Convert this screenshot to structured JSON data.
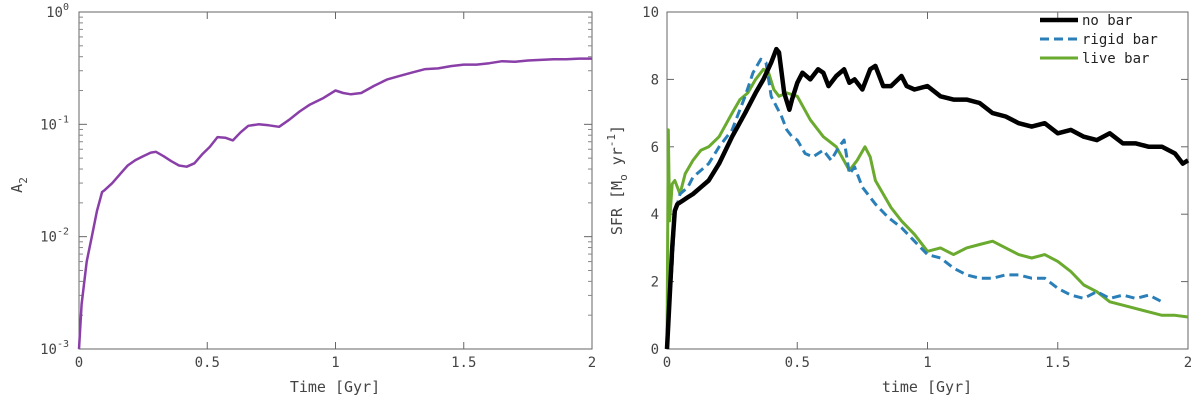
{
  "chart_data": [
    {
      "type": "line",
      "xlabel": "Time [Gyr]",
      "ylabel_base": "A",
      "ylabel_sub": "2",
      "yscale": "log",
      "xlim": [
        0,
        2
      ],
      "ylim": [
        0.001,
        1
      ],
      "xticks": [
        0,
        0.5,
        1,
        1.5,
        2
      ],
      "xtick_labels": [
        "0",
        "0.5",
        "1",
        "1.5",
        "2"
      ],
      "yticks": [
        0.001,
        0.01,
        0.1,
        1
      ],
      "ytick_base": "10",
      "ytick_exponents": [
        "-3",
        "-2",
        "-1",
        "0"
      ],
      "grid": false,
      "series": [
        {
          "color": "#8a3fa8",
          "x": [
            0,
            0.01,
            0.03,
            0.05,
            0.07,
            0.09,
            0.1,
            0.13,
            0.16,
            0.19,
            0.22,
            0.25,
            0.28,
            0.3,
            0.33,
            0.36,
            0.39,
            0.42,
            0.45,
            0.48,
            0.51,
            0.54,
            0.57,
            0.6,
            0.63,
            0.66,
            0.7,
            0.74,
            0.78,
            0.82,
            0.86,
            0.9,
            0.95,
            1.0,
            1.03,
            1.06,
            1.1,
            1.15,
            1.2,
            1.25,
            1.3,
            1.35,
            1.4,
            1.45,
            1.5,
            1.55,
            1.6,
            1.65,
            1.7,
            1.75,
            1.8,
            1.85,
            1.9,
            1.95,
            2.0
          ],
          "y": [
            0.001,
            0.0025,
            0.006,
            0.01,
            0.017,
            0.025,
            0.026,
            0.03,
            0.036,
            0.043,
            0.048,
            0.052,
            0.056,
            0.057,
            0.052,
            0.047,
            0.043,
            0.042,
            0.045,
            0.054,
            0.063,
            0.077,
            0.076,
            0.072,
            0.085,
            0.097,
            0.1,
            0.098,
            0.095,
            0.11,
            0.13,
            0.15,
            0.17,
            0.2,
            0.19,
            0.185,
            0.19,
            0.22,
            0.25,
            0.27,
            0.29,
            0.31,
            0.315,
            0.33,
            0.34,
            0.34,
            0.35,
            0.365,
            0.36,
            0.37,
            0.375,
            0.38,
            0.38,
            0.385,
            0.385
          ]
        }
      ]
    },
    {
      "type": "line",
      "xlabel": "time [Gyr]",
      "ylabel_prefix": "SFR [M",
      "ylabel_msub": "o",
      "ylabel_mid": " yr",
      "ylabel_sup": "-1",
      "ylabel_suffix": "]",
      "xlim": [
        0,
        2
      ],
      "ylim": [
        0,
        10
      ],
      "xticks": [
        0,
        0.5,
        1,
        1.5,
        2
      ],
      "xtick_labels": [
        "0",
        "0.5",
        "1",
        "1.5",
        "2"
      ],
      "yticks": [
        0,
        2,
        4,
        6,
        8,
        10
      ],
      "ytick_labels": [
        "0",
        "2",
        "4",
        "6",
        "8",
        "10"
      ],
      "grid": false,
      "legend_position": "top-right",
      "series": [
        {
          "name": "no bar",
          "color": "#000000",
          "style": "solid",
          "x": [
            0,
            0.01,
            0.02,
            0.03,
            0.04,
            0.06,
            0.08,
            0.1,
            0.13,
            0.16,
            0.2,
            0.25,
            0.3,
            0.34,
            0.37,
            0.4,
            0.42,
            0.43,
            0.45,
            0.47,
            0.48,
            0.5,
            0.52,
            0.55,
            0.58,
            0.6,
            0.62,
            0.65,
            0.68,
            0.7,
            0.72,
            0.75,
            0.78,
            0.8,
            0.83,
            0.86,
            0.9,
            0.92,
            0.95,
            1.0,
            1.05,
            1.1,
            1.15,
            1.2,
            1.25,
            1.3,
            1.35,
            1.4,
            1.45,
            1.5,
            1.55,
            1.6,
            1.65,
            1.7,
            1.75,
            1.8,
            1.85,
            1.9,
            1.95,
            1.98,
            2.0
          ],
          "y": [
            0,
            1.5,
            3.0,
            4.1,
            4.3,
            4.4,
            4.5,
            4.6,
            4.8,
            5.0,
            5.5,
            6.3,
            7.0,
            7.6,
            8.0,
            8.5,
            8.9,
            8.8,
            7.6,
            7.1,
            7.4,
            7.9,
            8.2,
            8.0,
            8.3,
            8.2,
            7.8,
            8.1,
            8.3,
            7.9,
            8.0,
            7.7,
            8.3,
            8.4,
            7.8,
            7.8,
            8.1,
            7.8,
            7.7,
            7.8,
            7.5,
            7.4,
            7.4,
            7.3,
            7.0,
            6.9,
            6.7,
            6.6,
            6.7,
            6.4,
            6.5,
            6.3,
            6.2,
            6.4,
            6.1,
            6.1,
            6.0,
            6.0,
            5.8,
            5.5,
            5.6
          ]
        },
        {
          "name": "rigid bar",
          "color": "#2a7fb8",
          "style": "dashed",
          "x": [
            0,
            0.01,
            0.02,
            0.03,
            0.05,
            0.08,
            0.1,
            0.13,
            0.16,
            0.2,
            0.25,
            0.3,
            0.33,
            0.36,
            0.38,
            0.4,
            0.42,
            0.44,
            0.46,
            0.48,
            0.5,
            0.53,
            0.56,
            0.6,
            0.63,
            0.66,
            0.68,
            0.7,
            0.72,
            0.75,
            0.8,
            0.85,
            0.9,
            0.95,
            1.0,
            1.05,
            1.1,
            1.15,
            1.2,
            1.25,
            1.3,
            1.35,
            1.4,
            1.45,
            1.5,
            1.55,
            1.6,
            1.65,
            1.7,
            1.75,
            1.8,
            1.85,
            1.9
          ],
          "y": [
            0,
            1.5,
            2.5,
            4.0,
            4.6,
            4.8,
            5.1,
            5.3,
            5.5,
            6.0,
            6.5,
            7.5,
            8.2,
            8.6,
            8.5,
            7.5,
            7.2,
            6.9,
            6.5,
            6.3,
            6.2,
            5.8,
            5.7,
            5.9,
            5.6,
            6.0,
            6.2,
            5.2,
            5.4,
            4.8,
            4.3,
            3.9,
            3.6,
            3.2,
            2.8,
            2.7,
            2.4,
            2.2,
            2.1,
            2.1,
            2.2,
            2.2,
            2.1,
            2.1,
            1.8,
            1.6,
            1.5,
            1.7,
            1.5,
            1.6,
            1.5,
            1.6,
            1.4
          ]
        },
        {
          "name": "live bar",
          "color": "#6aaa2f",
          "style": "solid",
          "x": [
            0,
            0.005,
            0.01,
            0.02,
            0.03,
            0.05,
            0.07,
            0.1,
            0.13,
            0.16,
            0.2,
            0.25,
            0.28,
            0.31,
            0.34,
            0.37,
            0.39,
            0.41,
            0.43,
            0.46,
            0.5,
            0.55,
            0.6,
            0.65,
            0.7,
            0.73,
            0.76,
            0.78,
            0.8,
            0.83,
            0.86,
            0.9,
            0.95,
            1.0,
            1.05,
            1.1,
            1.15,
            1.2,
            1.25,
            1.3,
            1.35,
            1.4,
            1.45,
            1.5,
            1.55,
            1.6,
            1.65,
            1.7,
            1.75,
            1.8,
            1.85,
            1.9,
            1.95,
            2.0
          ],
          "y": [
            0,
            6.5,
            3.8,
            4.9,
            5.0,
            4.6,
            5.2,
            5.6,
            5.9,
            6.0,
            6.3,
            7.0,
            7.4,
            7.6,
            8.0,
            8.3,
            8.2,
            7.7,
            7.5,
            7.6,
            7.5,
            6.8,
            6.3,
            6.0,
            5.3,
            5.6,
            6.0,
            5.7,
            5.0,
            4.6,
            4.2,
            3.8,
            3.4,
            2.9,
            3.0,
            2.8,
            3.0,
            3.1,
            3.2,
            3.0,
            2.8,
            2.7,
            2.8,
            2.6,
            2.3,
            1.9,
            1.7,
            1.4,
            1.3,
            1.2,
            1.1,
            1.0,
            1.0,
            0.95
          ]
        }
      ]
    }
  ]
}
